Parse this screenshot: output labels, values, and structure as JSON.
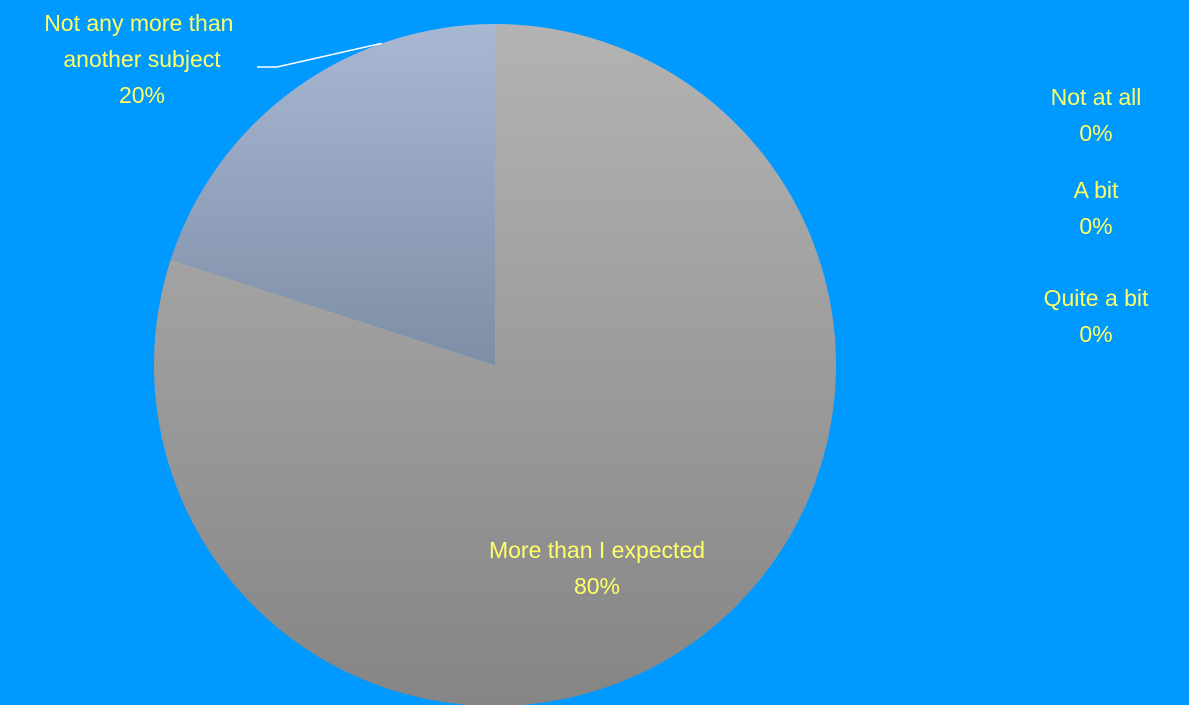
{
  "chart_data": {
    "type": "pie",
    "title": "",
    "background": "#0099ff",
    "label_color": "#ffff66",
    "slices": [
      {
        "label": "Not at all",
        "value": 0,
        "percent_label": "0%",
        "color_top": "#b3b3b3",
        "color_bottom": "#858585"
      },
      {
        "label": "A bit",
        "value": 0,
        "percent_label": "0%",
        "color_top": "#b3b3b3",
        "color_bottom": "#858585"
      },
      {
        "label": "Quite a bit",
        "value": 0,
        "percent_label": "0%",
        "color_top": "#b3b3b3",
        "color_bottom": "#858585"
      },
      {
        "label": "More than I expected",
        "value": 80,
        "percent_label": "80%",
        "color_top": "#b3b3b3",
        "color_bottom": "#858585"
      },
      {
        "label": "Not any more than another subject",
        "value": 20,
        "percent_label": "20%",
        "color_top": "#a9b8d2",
        "color_bottom": "#7e8ea7"
      }
    ]
  }
}
